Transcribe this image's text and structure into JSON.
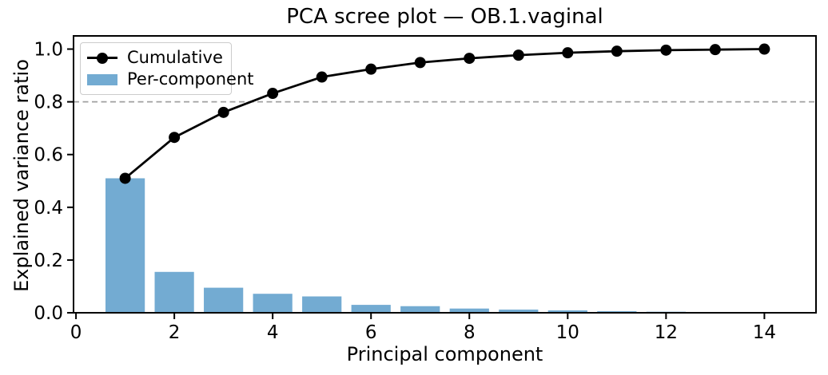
{
  "figure": {
    "kind": "matplotlib-style static chart"
  },
  "chart_data": {
    "type": "combo",
    "title": "PCA scree plot — OB.1.vaginal",
    "xlabel": "Principal component",
    "ylabel": "Explained variance ratio",
    "x": [
      1,
      2,
      3,
      4,
      5,
      6,
      7,
      8,
      9,
      10,
      11,
      12,
      13,
      14
    ],
    "series": [
      {
        "name": "Cumulative",
        "type": "line",
        "color": "#000000",
        "values": [
          0.51,
          0.665,
          0.76,
          0.832,
          0.894,
          0.924,
          0.949,
          0.965,
          0.977,
          0.986,
          0.992,
          0.996,
          0.998,
          1.0
        ]
      },
      {
        "name": "Per-component",
        "type": "bar",
        "color": "#73abd2",
        "values": [
          0.51,
          0.155,
          0.095,
          0.072,
          0.062,
          0.03,
          0.025,
          0.016,
          0.012,
          0.009,
          0.006,
          0.004,
          0.002,
          0.002
        ]
      }
    ],
    "reference_line": {
      "y": 0.8,
      "style": "dashed",
      "color": "#a0a0a0"
    },
    "bar_width": 0.8,
    "xlim": [
      -0.05,
      15.05
    ],
    "ylim": [
      0,
      1.05
    ],
    "xticks": [
      0,
      2,
      4,
      6,
      8,
      10,
      12,
      14
    ],
    "yticks": [
      0.0,
      0.2,
      0.4,
      0.6,
      0.8,
      1.0
    ],
    "legend_position": "upper left",
    "grid": false
  }
}
